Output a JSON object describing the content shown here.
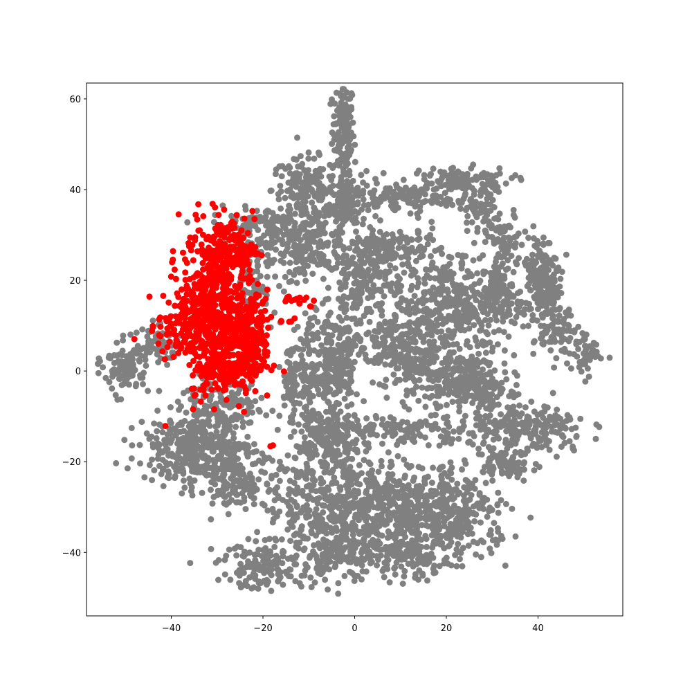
{
  "chart_data": {
    "type": "scatter",
    "title": "",
    "xlabel": "",
    "ylabel": "",
    "xlim": [
      -58.5,
      58.5
    ],
    "ylim": [
      -54,
      63.5
    ],
    "xticks": [
      -40,
      -20,
      0,
      20,
      40
    ],
    "yticks": [
      -40,
      -20,
      0,
      20,
      40,
      60
    ],
    "xtick_labels": [
      "−40",
      "−20",
      "0",
      "20",
      "40"
    ],
    "ytick_labels": [
      "−40",
      "−20",
      "0",
      "20",
      "40",
      "60"
    ],
    "grid": false,
    "legend": "none",
    "series": [
      {
        "color": "#808080",
        "clusters": [
          {
            "cx": -2.5,
            "cy": 53,
            "sx": 1.2,
            "sy": 5.5,
            "n": 140
          },
          {
            "cx": -1.5,
            "cy": 38,
            "sx": 2.0,
            "sy": 3.5,
            "n": 120
          },
          {
            "cx": -11,
            "cy": 40,
            "sx": 3.5,
            "sy": 3.5,
            "n": 150
          },
          {
            "cx": -7,
            "cy": 30,
            "sx": 3.0,
            "sy": 4.0,
            "n": 120
          },
          {
            "cx": 10,
            "cy": 38,
            "sx": 6.0,
            "sy": 1.5,
            "n": 120
          },
          {
            "cx": 22,
            "cy": 42,
            "sx": 6.0,
            "sy": 1.5,
            "n": 120
          },
          {
            "cx": 27,
            "cy": 36,
            "sx": 2.0,
            "sy": 3.5,
            "n": 80
          },
          {
            "cx": 33,
            "cy": 28,
            "sx": 2.0,
            "sy": 3.5,
            "n": 60
          },
          {
            "cx": -20,
            "cy": 32,
            "sx": 5.5,
            "sy": 2.0,
            "n": 120
          },
          {
            "cx": -12,
            "cy": 26,
            "sx": 2.5,
            "sy": 3.0,
            "n": 80
          },
          {
            "cx": 7,
            "cy": 26,
            "sx": 6.0,
            "sy": 3.0,
            "n": 200
          },
          {
            "cx": 1,
            "cy": 19,
            "sx": 3.0,
            "sy": 3.5,
            "n": 120
          },
          {
            "cx": 20,
            "cy": 15,
            "sx": 6.0,
            "sy": 5.0,
            "n": 320
          },
          {
            "cx": 32,
            "cy": 16,
            "sx": 2.5,
            "sy": 4.5,
            "n": 120
          },
          {
            "cx": 40,
            "cy": 22,
            "sx": 2.0,
            "sy": 4.0,
            "n": 120
          },
          {
            "cx": 43,
            "cy": 12,
            "sx": 2.0,
            "sy": 5.0,
            "n": 120
          },
          {
            "cx": 50,
            "cy": 4,
            "sx": 2.0,
            "sy": 2.5,
            "n": 60
          },
          {
            "cx": 8,
            "cy": 6,
            "sx": 5.0,
            "sy": 4.0,
            "n": 200
          },
          {
            "cx": 20,
            "cy": 0,
            "sx": 6.0,
            "sy": 4.0,
            "n": 250
          },
          {
            "cx": 27,
            "cy": -4,
            "sx": 3.0,
            "sy": 3.0,
            "n": 100
          },
          {
            "cx": 38,
            "cy": -13,
            "sx": 6.5,
            "sy": 3.0,
            "n": 220
          },
          {
            "cx": 33,
            "cy": -20,
            "sx": 3.5,
            "sy": 1.5,
            "n": 80
          },
          {
            "cx": -10,
            "cy": 0,
            "sx": 1.5,
            "sy": 5.0,
            "n": 90
          },
          {
            "cx": -14,
            "cy": -2,
            "sx": 1.0,
            "sy": 4.0,
            "n": 60
          },
          {
            "cx": -4,
            "cy": 2,
            "sx": 2.5,
            "sy": 6.0,
            "n": 200
          },
          {
            "cx": -6,
            "cy": -15,
            "sx": 3.5,
            "sy": 4.0,
            "n": 200
          },
          {
            "cx": 12,
            "cy": -13,
            "sx": 8.0,
            "sy": 1.5,
            "n": 120
          },
          {
            "cx": -5,
            "cy": -30,
            "sx": 7.0,
            "sy": 6.5,
            "n": 420
          },
          {
            "cx": 10,
            "cy": -30,
            "sx": 7.0,
            "sy": 5.0,
            "n": 320
          },
          {
            "cx": 22,
            "cy": -32,
            "sx": 6.0,
            "sy": 4.5,
            "n": 260
          },
          {
            "cx": 12,
            "cy": -41,
            "sx": 5.0,
            "sy": 2.5,
            "n": 120
          },
          {
            "cx": -3,
            "cy": -40,
            "sx": 4.0,
            "sy": 3.0,
            "n": 120
          },
          {
            "cx": -19,
            "cy": -43,
            "sx": 5.5,
            "sy": 2.5,
            "n": 140
          },
          {
            "cx": -29,
            "cy": -8,
            "sx": 4.5,
            "sy": 3.0,
            "n": 140
          },
          {
            "cx": -38,
            "cy": -17,
            "sx": 4.5,
            "sy": 3.5,
            "n": 200
          },
          {
            "cx": -30,
            "cy": -19,
            "sx": 4.0,
            "sy": 5.0,
            "n": 200
          },
          {
            "cx": -23,
            "cy": -25,
            "sx": 3.5,
            "sy": 3.0,
            "n": 100
          },
          {
            "cx": -50,
            "cy": 1,
            "sx": 2.5,
            "sy": 3.0,
            "n": 100
          },
          {
            "cx": -43,
            "cy": 6,
            "sx": 2.5,
            "sy": 2.0,
            "n": 60
          },
          {
            "cx": -22,
            "cy": 22,
            "sx": 2.5,
            "sy": 5.0,
            "n": 80
          }
        ]
      },
      {
        "color": "#ff0000",
        "clusters": [
          {
            "cx": -30,
            "cy": 15,
            "sx": 4.0,
            "sy": 8.5,
            "n": 550
          },
          {
            "cx": -23,
            "cy": 6,
            "sx": 2.5,
            "sy": 4.5,
            "n": 200
          },
          {
            "cx": -37,
            "cy": 10,
            "sx": 3.0,
            "sy": 4.0,
            "n": 140
          },
          {
            "cx": -27,
            "cy": 27,
            "sx": 3.0,
            "sy": 3.5,
            "n": 120
          },
          {
            "cx": -29,
            "cy": 0,
            "sx": 3.5,
            "sy": 2.5,
            "n": 120
          },
          {
            "cx": -13,
            "cy": 16,
            "sx": 1.5,
            "sy": 0.6,
            "n": 14
          },
          {
            "cx": -15,
            "cy": 11,
            "sx": 0.8,
            "sy": 0.6,
            "n": 5
          },
          {
            "cx": -9.5,
            "cy": 14.5,
            "sx": 0.4,
            "sy": 0.4,
            "n": 2
          },
          {
            "cx": -48,
            "cy": 7,
            "sx": 0.3,
            "sy": 0.3,
            "n": 1
          },
          {
            "cx": -41,
            "cy": -12.5,
            "sx": 0.3,
            "sy": 0.3,
            "n": 1
          },
          {
            "cx": -18.5,
            "cy": -16.5,
            "sx": 0.3,
            "sy": 0.5,
            "n": 2
          },
          {
            "cx": -25,
            "cy": -8.5,
            "sx": 0.5,
            "sy": 0.3,
            "n": 2
          }
        ]
      }
    ]
  }
}
